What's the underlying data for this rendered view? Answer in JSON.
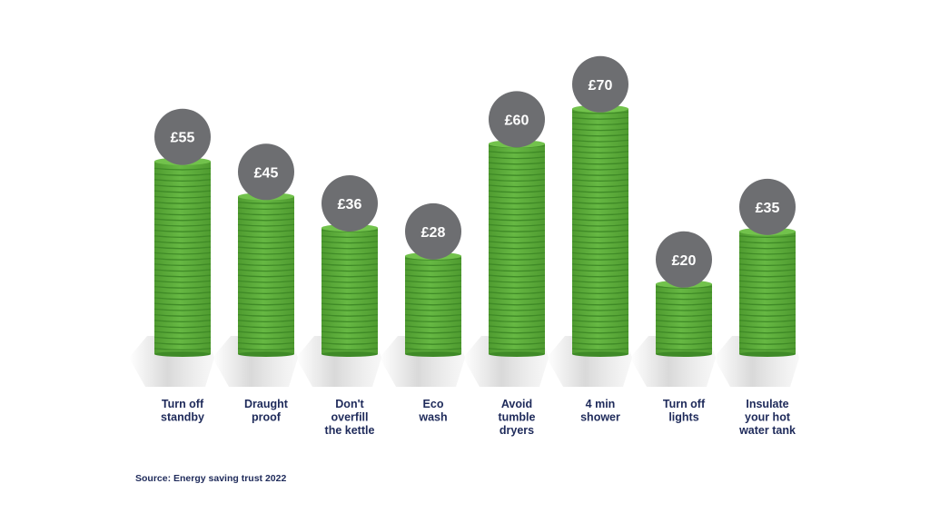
{
  "chart_data": {
    "type": "bar",
    "categories": [
      [
        "Turn off",
        "standby"
      ],
      [
        "Draught",
        "proof"
      ],
      [
        "Don't",
        "overfill",
        "the kettle"
      ],
      [
        "Eco",
        "wash"
      ],
      [
        "Avoid",
        "tumble",
        "dryers"
      ],
      [
        "4 min",
        "shower"
      ],
      [
        "Turn off",
        "lights"
      ],
      [
        "Insulate",
        "your hot",
        "water tank"
      ]
    ],
    "values": [
      55,
      45,
      36,
      28,
      60,
      70,
      20,
      35
    ],
    "value_labels": [
      "£55",
      "£45",
      "£36",
      "£28",
      "£60",
      "£70",
      "£20",
      "£35"
    ],
    "ylim": [
      0,
      80
    ],
    "colors": {
      "coin": "#5aa83a",
      "coin_top": "#72c24c",
      "coin_edge": "#3f8a27",
      "badge": "#6d6e71",
      "label": "#1e2a5a"
    }
  },
  "source": "Source: Energy saving trust 2022"
}
